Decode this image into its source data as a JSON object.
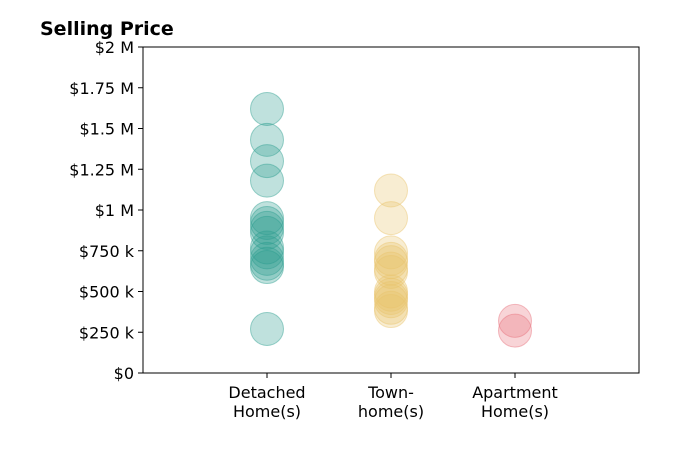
{
  "chart_data": {
    "type": "scatter",
    "title": "Selling Price",
    "xlabel": "",
    "ylabel": "",
    "categories": [
      "Detached\nHome(s)",
      "Town-\nhome(s)",
      "Apartment\nHome(s)"
    ],
    "xlim": [
      0,
      4
    ],
    "ylim": [
      0,
      2000000
    ],
    "y_ticks": [
      {
        "value": 0,
        "label": "$0"
      },
      {
        "value": 250000,
        "label": "$250 k"
      },
      {
        "value": 500000,
        "label": "$500 k"
      },
      {
        "value": 750000,
        "label": "$750 k"
      },
      {
        "value": 1000000,
        "label": "$1 M"
      },
      {
        "value": 1250000,
        "label": "$1.25 M"
      },
      {
        "value": 1500000,
        "label": "$1.5 M"
      },
      {
        "value": 1750000,
        "label": "$1.75 M"
      },
      {
        "value": 2000000,
        "label": "$2 M"
      }
    ],
    "grid": false,
    "series": [
      {
        "category": "Detached\nHome(s)",
        "x": 1,
        "color": "#2a9d8f",
        "values": [
          1620000,
          1430000,
          1300000,
          1180000,
          950000,
          920000,
          890000,
          860000,
          770000,
          740000,
          700000,
          670000,
          650000,
          270000
        ]
      },
      {
        "category": "Town-\nhome(s)",
        "x": 2,
        "color": "#e9c46a",
        "values": [
          1120000,
          950000,
          740000,
          700000,
          680000,
          640000,
          620000,
          500000,
          480000,
          460000,
          440000,
          400000,
          380000
        ]
      },
      {
        "category": "Apartment\nHome(s)",
        "x": 3,
        "color": "#e76f7b",
        "values": [
          320000,
          260000
        ]
      }
    ]
  }
}
